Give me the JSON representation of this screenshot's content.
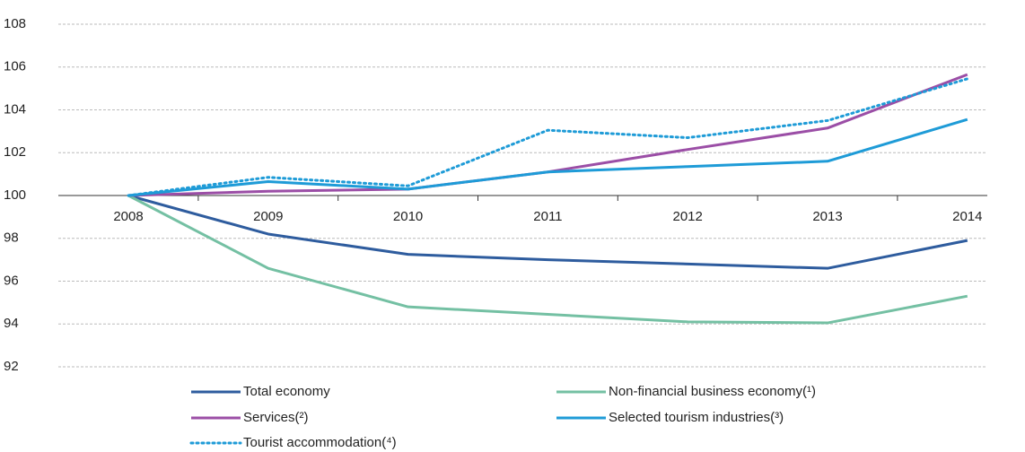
{
  "chart_data": {
    "type": "line",
    "categories": [
      "2008",
      "2009",
      "2010",
      "2011",
      "2012",
      "2013",
      "2014"
    ],
    "series": [
      {
        "name": "Total economy",
        "color": "#2e5c9e",
        "values": [
          100,
          98.2,
          97.25,
          97.0,
          96.8,
          96.6,
          97.9
        ]
      },
      {
        "name": "Non-financial business economy(¹)",
        "color": "#74c0a3",
        "values": [
          100,
          96.6,
          94.8,
          94.45,
          94.1,
          94.05,
          95.3
        ]
      },
      {
        "name": "Services(²)",
        "color": "#9b4ea6",
        "values": [
          100,
          100.2,
          100.3,
          101.1,
          102.15,
          103.15,
          105.65
        ]
      },
      {
        "name": "Selected tourism industries(³)",
        "color": "#1e9bd7",
        "values": [
          100,
          100.65,
          100.3,
          101.1,
          101.35,
          101.6,
          103.55
        ]
      },
      {
        "name": "Tourist accommodation(⁴)",
        "color": "#1e9bd7",
        "style": "dotted",
        "values": [
          100,
          100.85,
          100.45,
          103.05,
          102.7,
          103.5,
          105.45
        ]
      }
    ],
    "ylim": [
      92,
      108
    ],
    "yticks": [
      92,
      94,
      96,
      98,
      100,
      102,
      104,
      106,
      108
    ],
    "grid": true
  }
}
